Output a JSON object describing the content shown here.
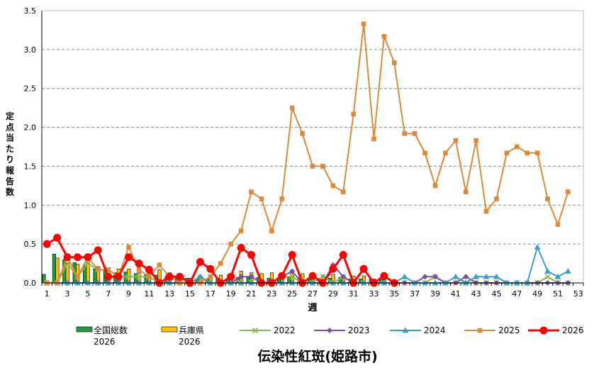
{
  "chart_data": {
    "type": "line",
    "title": "伝染性紅斑(姫路市)",
    "xlabel": "週",
    "ylabel": "定点当たり報告数",
    "ylim": [
      0,
      3.5
    ],
    "yticks": [
      "0.0",
      "0.5",
      "1.0",
      "1.5",
      "2.0",
      "2.5",
      "3.0",
      "3.5"
    ],
    "xticks": [
      "1",
      "3",
      "5",
      "7",
      "9",
      "11",
      "13",
      "15",
      "17",
      "19",
      "21",
      "23",
      "25",
      "27",
      "29",
      "31",
      "33",
      "35",
      "37",
      "39",
      "41",
      "43",
      "45",
      "47",
      "49",
      "51",
      "53"
    ],
    "x": [
      1,
      2,
      3,
      4,
      5,
      6,
      7,
      8,
      9,
      10,
      11,
      12,
      13,
      14,
      15,
      16,
      17,
      18,
      19,
      20,
      21,
      22,
      23,
      24,
      25,
      26,
      27,
      28,
      29,
      30,
      31,
      32,
      33,
      34,
      35,
      36,
      37,
      38,
      39,
      40,
      41,
      42,
      43,
      44,
      45,
      46,
      47,
      48,
      49,
      50,
      51,
      52
    ],
    "grid": "horizontal dashed",
    "legend_position": "bottom",
    "bar_series": [
      {
        "name": "全国総数2026",
        "legend_lines": [
          "全国総数",
          "2026"
        ],
        "color": "#1e9e3e",
        "values": [
          0.11,
          0.37,
          0.3,
          0.26,
          0.23,
          0.18,
          0.16,
          0.13,
          0.14,
          0.12,
          0.11,
          0.1,
          0.08,
          0.06,
          0.06,
          0.05,
          0.05,
          0.06,
          0.06,
          0.07,
          0.07,
          0.07,
          0.06,
          0.06,
          0.07,
          0.07,
          0.06,
          0.06,
          0.06,
          0.07,
          0.05,
          0.05,
          0.05,
          0.04,
          null,
          null,
          null,
          null,
          null,
          null,
          null,
          null,
          null,
          null,
          null,
          null,
          null,
          null,
          null,
          null,
          null,
          null
        ]
      },
      {
        "name": "兵庫県2026",
        "legend_lines": [
          "兵庫県",
          "2026"
        ],
        "color": "#ffc000",
        "values": [
          0.0,
          0.32,
          0.26,
          0.24,
          0.27,
          0.21,
          0.18,
          0.18,
          0.18,
          0.13,
          0.12,
          0.17,
          0.13,
          0.08,
          0.06,
          0.06,
          0.07,
          0.1,
          0.1,
          0.15,
          0.13,
          0.12,
          0.13,
          0.1,
          0.15,
          0.12,
          0.1,
          0.1,
          0.11,
          0.1,
          0.09,
          0.09,
          0.05,
          0.04,
          null,
          null,
          null,
          null,
          null,
          null,
          null,
          null,
          null,
          null,
          null,
          null,
          null,
          null,
          null,
          null,
          null,
          null
        ]
      }
    ],
    "series": [
      {
        "name": "2022",
        "color": "#8db84a",
        "marker": "x",
        "values": [
          0,
          0,
          0.25,
          0.08,
          0.25,
          0.17,
          0.17,
          0.08,
          0.08,
          0.08,
          0.08,
          0,
          0,
          0,
          0,
          0,
          0,
          0,
          0.08,
          0,
          0,
          0,
          0,
          0.08,
          0.08,
          0,
          0,
          0.08,
          0,
          0.08,
          0,
          0,
          0,
          0,
          0,
          0,
          0,
          0,
          0.08,
          0,
          0,
          0,
          0,
          0,
          0,
          0,
          0,
          0,
          0,
          0.08,
          0,
          0
        ]
      },
      {
        "name": "2023",
        "color": "#7c4fa0",
        "marker": "diamond",
        "values": [
          0,
          0,
          0,
          0,
          0,
          0,
          0,
          0,
          0,
          0,
          0,
          0,
          0,
          0,
          0,
          0.08,
          0,
          0,
          0,
          0.08,
          0.08,
          0,
          0,
          0.08,
          0.15,
          0,
          0,
          0,
          0.23,
          0.08,
          0,
          0,
          0,
          0,
          0,
          0,
          0,
          0.08,
          0.08,
          0,
          0,
          0.08,
          0,
          0,
          0,
          0,
          0,
          0,
          0,
          0,
          0,
          0
        ]
      },
      {
        "name": "2024",
        "color": "#3a9fc4",
        "marker": "triangle",
        "values": [
          0,
          0,
          0,
          0,
          0,
          0,
          0,
          0,
          0,
          0,
          0,
          0,
          0,
          0,
          0,
          0.08,
          0,
          0,
          0,
          0,
          0,
          0,
          0,
          0,
          0,
          0,
          0,
          0,
          0,
          0,
          0,
          0,
          0,
          0,
          0,
          0.08,
          0,
          0,
          0,
          0,
          0.08,
          0,
          0.08,
          0.08,
          0.08,
          0,
          0,
          0,
          0.46,
          0.15,
          0.08,
          0.15
        ]
      },
      {
        "name": "2025",
        "color": "#e0873a",
        "marker": "square",
        "values": [
          0,
          0,
          0.33,
          0.08,
          0.33,
          0.17,
          0.17,
          0.08,
          0.46,
          0.17,
          0.08,
          0.23,
          0.08,
          0,
          0,
          0,
          0.08,
          0.25,
          0.5,
          0.67,
          1.17,
          1.08,
          0.67,
          1.08,
          2.25,
          1.92,
          1.5,
          1.5,
          1.25,
          1.17,
          2.17,
          3.33,
          1.85,
          3.17,
          2.83,
          1.92,
          1.92,
          1.67,
          1.25,
          1.67,
          1.83,
          1.17,
          1.83,
          0.92,
          1.08,
          1.67,
          1.75,
          1.67,
          1.67,
          1.08,
          0.75,
          1.17
        ]
      },
      {
        "name": "2026",
        "color": "#ff0000",
        "marker": "circle",
        "values": [
          0.5,
          0.58,
          0.33,
          0.33,
          0.33,
          0.42,
          0.08,
          0.08,
          0.33,
          0.25,
          0.17,
          0.0,
          0.08,
          0.08,
          0,
          0.27,
          0.18,
          0,
          0.08,
          0.45,
          0.36,
          0,
          0,
          0.09,
          0.36,
          0,
          0.09,
          0,
          0.18,
          0.36,
          0,
          0.18,
          0,
          0.09,
          0,
          null,
          null,
          null,
          null,
          null,
          null,
          null,
          null,
          null,
          null,
          null,
          null,
          null,
          null,
          null,
          null,
          null
        ]
      }
    ]
  }
}
